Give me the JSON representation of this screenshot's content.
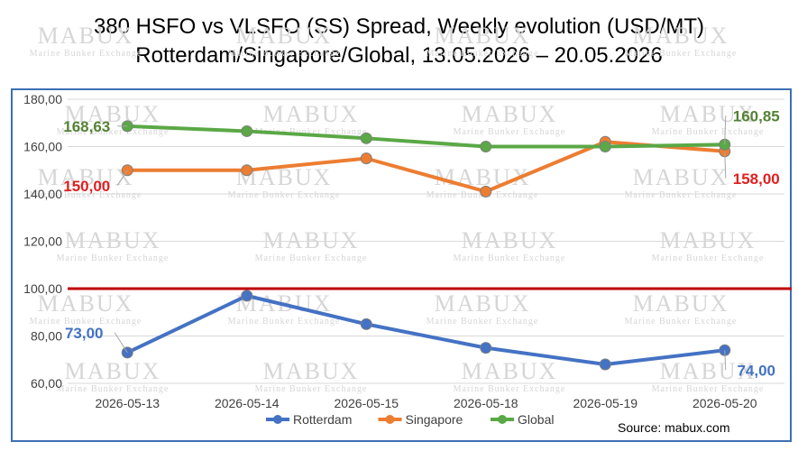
{
  "title_line1": "380 HSFO vs VLSFO (SS) Spread, Weekly evolution (USD/MT)",
  "title_line2": "Rotterdam/Singapore/Global, 13.05.2026 – 20.05.2026",
  "source": "Source: mabux.com",
  "watermark": {
    "main": "MABUX",
    "sub": "Marine Bunker Exchange"
  },
  "chart_data": {
    "type": "line",
    "categories": [
      "2026-05-13",
      "2026-05-14",
      "2026-05-15",
      "2026-05-18",
      "2026-05-19",
      "2026-05-20"
    ],
    "y_ticks": [
      "60,00",
      "80,00",
      "100,00",
      "120,00",
      "140,00",
      "160,00",
      "180,00"
    ],
    "ylim": [
      60,
      180
    ],
    "grid": true,
    "legend_position": "bottom",
    "reference_line": {
      "value": 100,
      "color": "#c00000"
    },
    "series": [
      {
        "name": "Rotterdam",
        "color": "#4472c4",
        "values": [
          73,
          97,
          85,
          75,
          68,
          74
        ],
        "labels": [
          {
            "index": 0,
            "text": "73,00"
          },
          {
            "index": 5,
            "text": "74,00"
          }
        ]
      },
      {
        "name": "Singapore",
        "color": "#ed7d31",
        "values": [
          150,
          150,
          155,
          141,
          162,
          158
        ],
        "labels": [
          {
            "index": 0,
            "text": "150,00"
          },
          {
            "index": 5,
            "text": "158,00"
          }
        ],
        "label_color": "#e02020"
      },
      {
        "name": "Global",
        "color": "#5aa846",
        "values": [
          168.63,
          166.5,
          163.5,
          160,
          160,
          160.85
        ],
        "labels": [
          {
            "index": 0,
            "text": "168,63"
          },
          {
            "index": 5,
            "text": "160,85"
          }
        ],
        "label_color": "#548235"
      }
    ]
  }
}
